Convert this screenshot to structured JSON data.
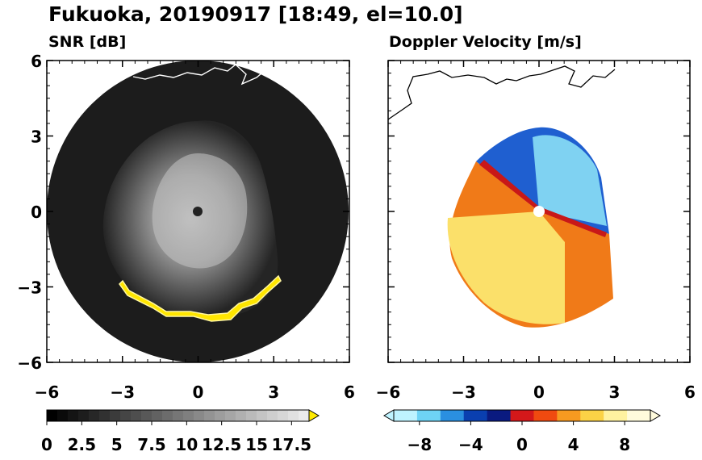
{
  "title": "Fukuoka, 20190917 [18:49, el=10.0]",
  "chart_data": [
    {
      "type": "heatmap",
      "subtitle": "SNR [dB]",
      "xlim": [
        -6,
        6
      ],
      "ylim": [
        -6,
        6
      ],
      "xticks": [
        -6,
        -3,
        0,
        3,
        6
      ],
      "yticks": [
        6,
        3,
        0,
        -3,
        -6
      ],
      "colorbar": {
        "min": 0,
        "max": 18.75,
        "extend": "max",
        "ticks": [
          "0",
          "2.5",
          "5",
          "7.5",
          "10",
          "12.5",
          "15",
          "17.5"
        ]
      },
      "colors": {
        "low": "#000000",
        "high": "#e8e8e8",
        "extend": "#ffea00",
        "echo_high": "#ffe600"
      }
    },
    {
      "type": "heatmap",
      "subtitle": "Doppler Velocity [m/s]",
      "xlim": [
        -6,
        6
      ],
      "ylim": [
        -6,
        6
      ],
      "xticks": [
        -6,
        -3,
        0,
        3,
        6
      ],
      "colorbar": {
        "min": -10,
        "max": 10,
        "extend": "both",
        "ticks": [
          "−8",
          "−4",
          "0",
          "4",
          "8"
        ]
      },
      "colors": [
        "#bff3ff",
        "#6ed3f5",
        "#2a8fe0",
        "#0a3fb0",
        "#0a1a80",
        "#d4181a",
        "#f04a10",
        "#f79a20",
        "#fbd246",
        "#fff2a0",
        "#fffbdc"
      ]
    }
  ]
}
